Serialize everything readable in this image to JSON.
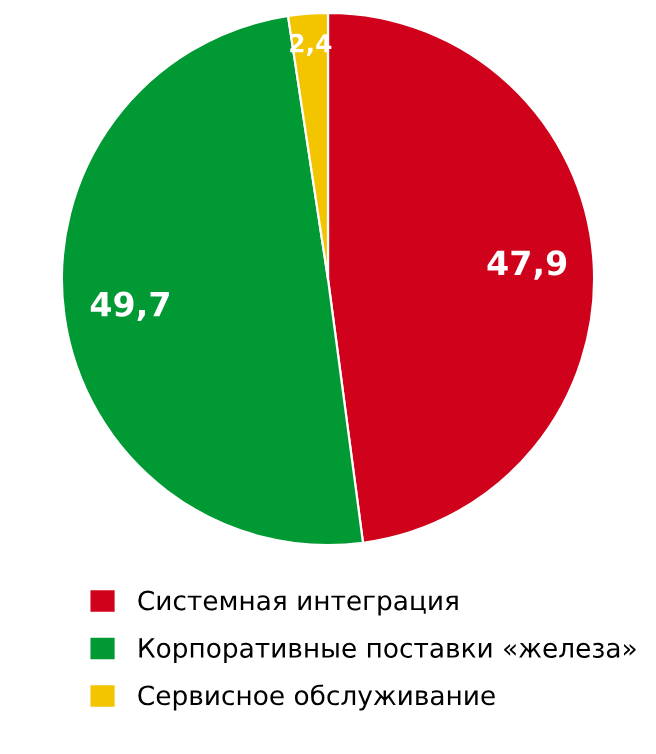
{
  "chart_data": {
    "type": "pie",
    "categories": [
      "Системная интеграция",
      "Корпоративные поставки «железа»",
      "Сервисное обслуживание"
    ],
    "values": [
      47.9,
      49.7,
      2.4
    ],
    "value_labels": [
      "47,9",
      "49,7",
      "2,4"
    ],
    "colors": [
      "#d0021b",
      "#009933",
      "#f2c500"
    ],
    "legend": "bottom"
  }
}
